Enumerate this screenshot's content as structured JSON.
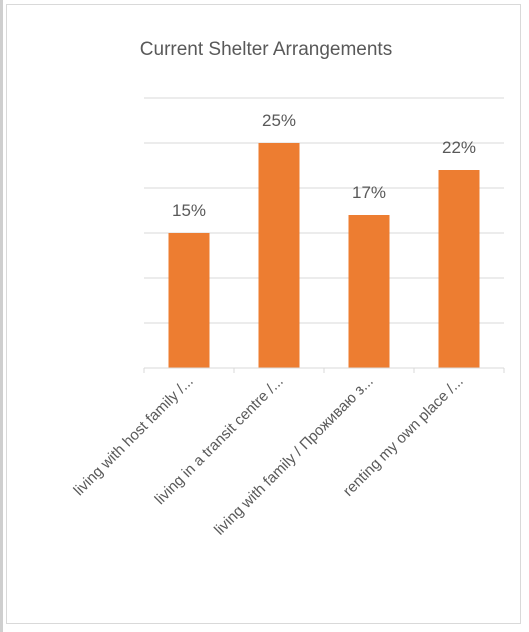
{
  "chart_data": {
    "type": "bar",
    "title": "Current Shelter Arrangements",
    "categories": [
      "living with host family /...",
      "living in a transit centre /...",
      "living with family / Проживаю з...",
      "renting my own place /..."
    ],
    "values": [
      15,
      25,
      17,
      22
    ],
    "value_labels": [
      "15%",
      "25%",
      "17%",
      "22%"
    ],
    "unit": "%",
    "ylim": [
      0,
      30
    ],
    "grid_step": 5,
    "grid": true,
    "legend": "none",
    "bar_color": "#ED7D31",
    "grid_color": "#d9d9d9",
    "text_color": "#595959",
    "xlabel": "",
    "ylabel": ""
  }
}
